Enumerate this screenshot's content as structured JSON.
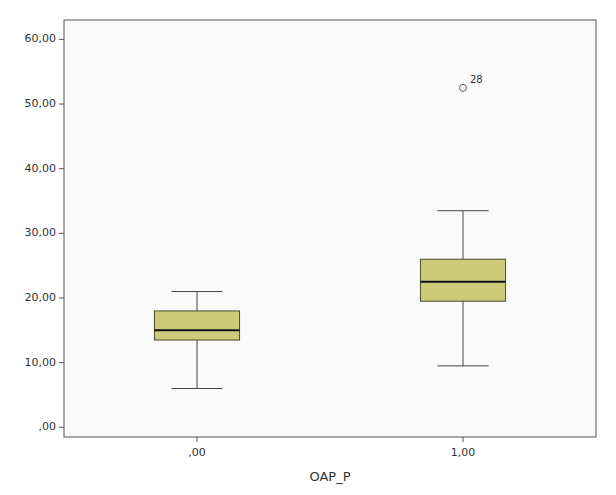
{
  "chart_data": {
    "type": "box",
    "xlabel": "OAP_P",
    "categories": [
      ",00",
      "1,00"
    ],
    "boxes": [
      {
        "whisker_low": 6.0,
        "q1": 13.5,
        "median": 15.0,
        "q3": 18.0,
        "whisker_high": 21.0
      },
      {
        "whisker_low": 9.5,
        "q1": 19.5,
        "median": 22.5,
        "q3": 26.0,
        "whisker_high": 33.5,
        "outliers": [
          52.5
        ],
        "outlier_labels": [
          "28"
        ]
      }
    ],
    "color": "#CBCB7A",
    "ylim": [
      -1.5,
      63
    ],
    "yticks": [
      {
        "value": 0,
        "label": ",00"
      },
      {
        "value": 10,
        "label": "10,00"
      },
      {
        "value": 20,
        "label": "20,00"
      },
      {
        "value": 30,
        "label": "30,00"
      },
      {
        "value": 40,
        "label": "40,00"
      },
      {
        "value": 50,
        "label": "50,00"
      },
      {
        "value": 60,
        "label": "60,00"
      }
    ],
    "grid": false
  }
}
